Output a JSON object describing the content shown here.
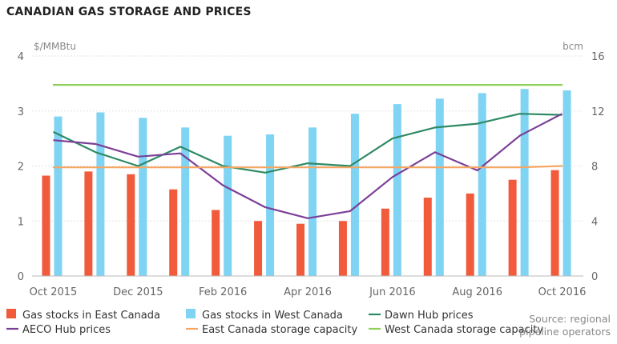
{
  "title": "CANADIAN GAS STORAGE AND PRICES",
  "source": {
    "line1": "Source: regional",
    "line2": "pipeline operators"
  },
  "chart_data": {
    "type": "bar",
    "title": "CANADIAN GAS STORAGE AND PRICES",
    "y_left": {
      "label": "$/MMBtu",
      "ticks": [
        "0",
        "1",
        "2",
        "3",
        "4"
      ],
      "range": [
        0,
        4
      ]
    },
    "y_right": {
      "label": "bcm",
      "ticks": [
        "0",
        "4",
        "8",
        "12",
        "16"
      ],
      "range": [
        0,
        16
      ]
    },
    "x_tick_labels": [
      "Oct 2015",
      "Dec 2015",
      "Feb 2016",
      "Apr 2016",
      "Jun 2016",
      "Aug 2016",
      "Oct 2016"
    ],
    "grid": true,
    "legend_position": "bottom",
    "bars": [
      {
        "name": "Gas stocks in East Canada",
        "axis": "right",
        "color": "#f15a3a",
        "values": [
          7.3,
          7.6,
          7.4,
          6.3,
          4.8,
          4.0,
          3.8,
          4.0,
          4.9,
          5.7,
          6.0,
          7.0,
          7.7
        ]
      },
      {
        "name": "Gas stocks in West Canada",
        "axis": "right",
        "color": "#7fd3f3",
        "values": [
          11.6,
          11.9,
          11.5,
          10.8,
          10.2,
          10.3,
          10.8,
          11.8,
          12.5,
          12.9,
          13.3,
          13.6,
          13.5
        ]
      }
    ],
    "lines": [
      {
        "name": "Dawn Hub prices",
        "axis": "left",
        "color": "#2e8a64",
        "values": [
          2.62,
          2.25,
          2.0,
          2.35,
          2.0,
          1.88,
          2.05,
          2.0,
          2.5,
          2.7,
          2.77,
          2.95,
          2.93
        ]
      },
      {
        "name": "AECO Hub prices",
        "axis": "left",
        "color": "#7b3f98",
        "values": [
          2.47,
          2.4,
          2.17,
          2.23,
          1.65,
          1.25,
          1.05,
          1.18,
          1.8,
          2.25,
          1.92,
          2.55,
          2.95
        ]
      },
      {
        "name": "East Canada storage capacity",
        "axis": "right",
        "color": "#f5a662",
        "values": [
          7.9,
          7.9,
          7.9,
          7.9,
          7.9,
          7.9,
          7.9,
          7.9,
          7.9,
          7.9,
          7.9,
          7.9,
          8.0
        ]
      },
      {
        "name": "West Canada storage capacity",
        "axis": "right",
        "color": "#8fd05c",
        "values": [
          13.9,
          13.9,
          13.9,
          13.9,
          13.9,
          13.9,
          13.9,
          13.9,
          13.9,
          13.9,
          13.9,
          13.9,
          13.9
        ]
      }
    ],
    "legend": [
      {
        "name": "Gas stocks in East Canada",
        "kind": "bar",
        "color": "#f15a3a"
      },
      {
        "name": "Gas stocks in West Canada",
        "kind": "bar",
        "color": "#7fd3f3"
      },
      {
        "name": "Dawn Hub prices",
        "kind": "line",
        "color": "#2e8a64"
      },
      {
        "name": "AECO Hub prices",
        "kind": "line",
        "color": "#7b3f98"
      },
      {
        "name": "East Canada storage capacity",
        "kind": "line",
        "color": "#f5a662"
      },
      {
        "name": "West Canada storage capacity",
        "kind": "line",
        "color": "#8fd05c"
      }
    ]
  }
}
